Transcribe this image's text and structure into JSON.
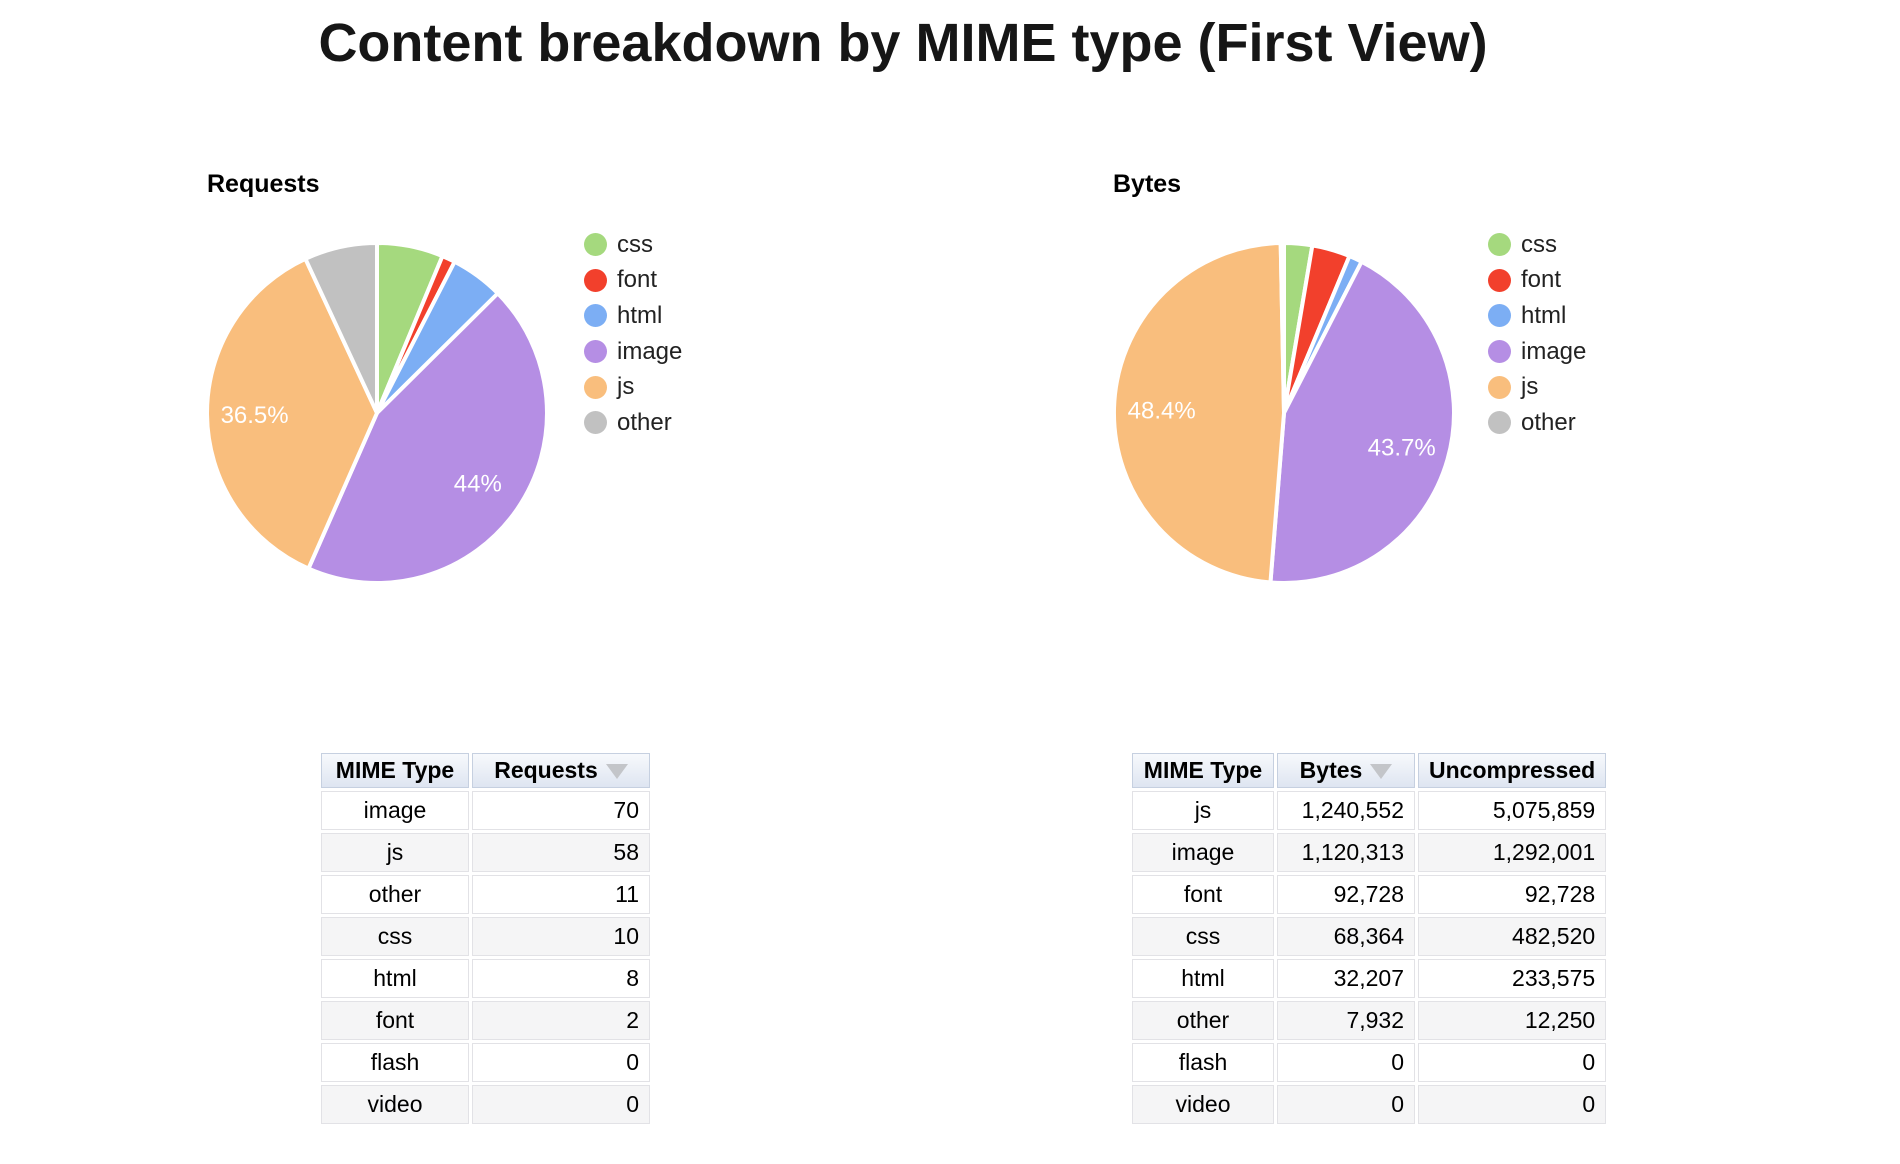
{
  "page": {
    "title": "Content breakdown by MIME type (First View)"
  },
  "chart_data": [
    {
      "type": "pie",
      "title": "Requests",
      "legend_position": "right",
      "start_angle_deg": 0,
      "slice_label_color": "#ffffff",
      "slices": [
        {
          "label": "css",
          "value": 10,
          "color": "#A5D97E",
          "pct_label": ""
        },
        {
          "label": "font",
          "value": 2,
          "color": "#F2402C",
          "pct_label": ""
        },
        {
          "label": "html",
          "value": 8,
          "color": "#7CAEF4",
          "pct_label": ""
        },
        {
          "label": "image",
          "value": 70,
          "color": "#B58EE4",
          "pct_label": "44%"
        },
        {
          "label": "js",
          "value": 58,
          "color": "#F9BE7D",
          "pct_label": "36.5%"
        },
        {
          "label": "other",
          "value": 11,
          "color": "#C1C1C1",
          "pct_label": ""
        }
      ]
    },
    {
      "type": "pie",
      "title": "Bytes",
      "legend_position": "right",
      "start_angle_deg": 0,
      "slice_label_color": "#ffffff",
      "slices": [
        {
          "label": "css",
          "value": 68364,
          "color": "#A5D97E",
          "pct_label": ""
        },
        {
          "label": "font",
          "value": 92728,
          "color": "#F2402C",
          "pct_label": ""
        },
        {
          "label": "html",
          "value": 32207,
          "color": "#7CAEF4",
          "pct_label": ""
        },
        {
          "label": "image",
          "value": 1120313,
          "color": "#B58EE4",
          "pct_label": "43.7%"
        },
        {
          "label": "js",
          "value": 1240552,
          "color": "#F9BE7D",
          "pct_label": "48.4%"
        },
        {
          "label": "other",
          "value": 7932,
          "color": "#C1C1C1",
          "pct_label": ""
        }
      ]
    }
  ],
  "tables": [
    {
      "name": "requests-table",
      "columns": [
        {
          "label": "MIME Type",
          "align": "center",
          "sort_icon": ""
        },
        {
          "label": "Requests",
          "align": "right",
          "sort_icon": "sort-desc-icon"
        }
      ],
      "rows": [
        [
          "image",
          "70"
        ],
        [
          "js",
          "58"
        ],
        [
          "other",
          "11"
        ],
        [
          "css",
          "10"
        ],
        [
          "html",
          "8"
        ],
        [
          "font",
          "2"
        ],
        [
          "flash",
          "0"
        ],
        [
          "video",
          "0"
        ]
      ]
    },
    {
      "name": "bytes-table",
      "columns": [
        {
          "label": "MIME Type",
          "align": "center",
          "sort_icon": ""
        },
        {
          "label": "Bytes",
          "align": "right",
          "sort_icon": "sort-desc-icon"
        },
        {
          "label": "Uncompressed",
          "align": "right",
          "sort_icon": ""
        }
      ],
      "rows": [
        [
          "js",
          "1,240,552",
          "5,075,859"
        ],
        [
          "image",
          "1,120,313",
          "1,292,001"
        ],
        [
          "font",
          "92,728",
          "92,728"
        ],
        [
          "css",
          "68,364",
          "482,520"
        ],
        [
          "html",
          "32,207",
          "233,575"
        ],
        [
          "other",
          "7,932",
          "12,250"
        ],
        [
          "flash",
          "0",
          "0"
        ],
        [
          "video",
          "0",
          "0"
        ]
      ]
    }
  ]
}
